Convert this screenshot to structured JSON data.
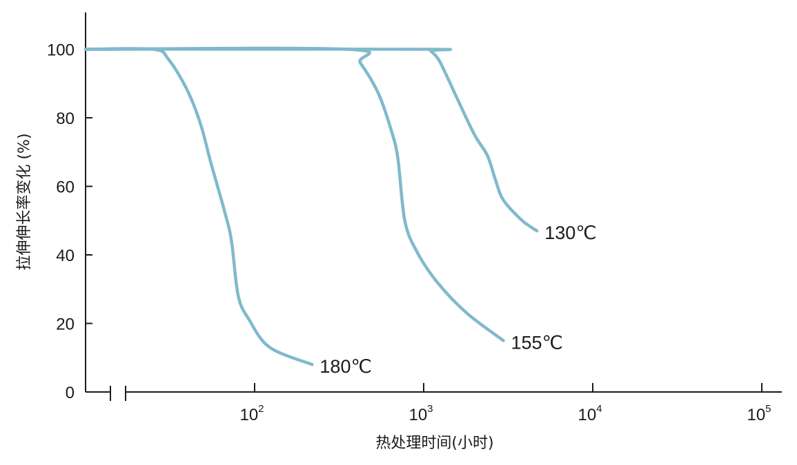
{
  "chart_data": {
    "type": "line",
    "xlabel": "热处理时间(小时)",
    "ylabel": "拉伸伸长率变化 (%)",
    "x_scale": "log",
    "xlim": [
      10,
      100000
    ],
    "ylim": [
      0,
      110
    ],
    "x_ticks": [
      {
        "value": 100,
        "base": "10",
        "exp": "2"
      },
      {
        "value": 1000,
        "base": "10",
        "exp": "3"
      },
      {
        "value": 10000,
        "base": "10",
        "exp": "4"
      },
      {
        "value": 100000,
        "base": "10",
        "exp": "5"
      }
    ],
    "y_ticks": [
      {
        "value": 0,
        "label": "0"
      },
      {
        "value": 20,
        "label": "20"
      },
      {
        "value": 40,
        "label": "40"
      },
      {
        "value": 60,
        "label": "60"
      },
      {
        "value": 80,
        "label": "80"
      },
      {
        "value": 100,
        "label": "100"
      }
    ],
    "axis_break": true,
    "grid": false,
    "line_color": "#80b9cc",
    "series": [
      {
        "name": "180℃",
        "points": [
          [
            10,
            100
          ],
          [
            25,
            100
          ],
          [
            31,
            97
          ],
          [
            40,
            88
          ],
          [
            48,
            78
          ],
          [
            55,
            67
          ],
          [
            67,
            52
          ],
          [
            73,
            44
          ],
          [
            80,
            28
          ],
          [
            93,
            21
          ],
          [
            123,
            13
          ],
          [
            219,
            8
          ]
        ]
      },
      {
        "name": "155℃",
        "points": [
          [
            10,
            100
          ],
          [
            350,
            100
          ],
          [
            422,
            96
          ],
          [
            541,
            87
          ],
          [
            646,
            76
          ],
          [
            704,
            68
          ],
          [
            773,
            50
          ],
          [
            910,
            41
          ],
          [
            1203,
            32
          ],
          [
            1800,
            23
          ],
          [
            2960,
            15
          ]
        ]
      },
      {
        "name": "130℃",
        "points": [
          [
            10,
            100
          ],
          [
            1000,
            100
          ],
          [
            1100,
            99.5
          ],
          [
            1224,
            97
          ],
          [
            1346,
            93
          ],
          [
            1600,
            85
          ],
          [
            2000,
            75
          ],
          [
            2380,
            69
          ],
          [
            2654,
            62
          ],
          [
            2960,
            56
          ],
          [
            3830,
            50
          ],
          [
            4680,
            47
          ]
        ]
      }
    ]
  }
}
